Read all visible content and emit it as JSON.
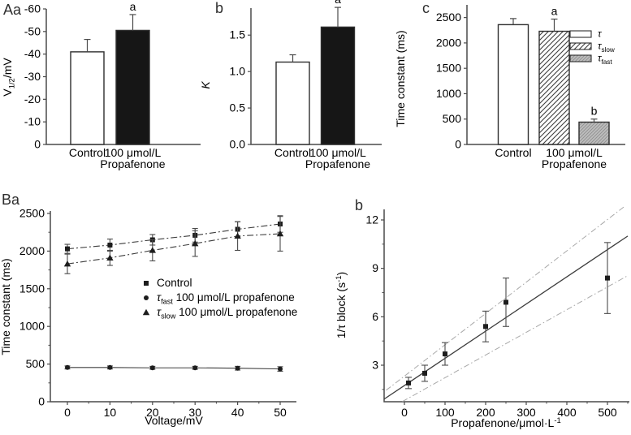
{
  "figure": {
    "background": "#ffffff",
    "text_color": "#3a3a3a",
    "axis_color": "#4a4a4a",
    "bar_black": "#161616",
    "bar_white": "#ffffff",
    "gray_fill": "#bdbdbd",
    "confidence_line_color": "#a8a8a8"
  },
  "chart_data": [
    {
      "id": "Aa",
      "panel_label": "Aa",
      "type": "bar",
      "ylabel_rich": [
        {
          "t": "V"
        },
        {
          "t": "1/2",
          "sub": true
        },
        {
          "t": "/mV"
        }
      ],
      "ylim": [
        0,
        -60
      ],
      "yticks": [
        {
          "v": 0,
          "label": "0"
        },
        {
          "v": 10,
          "label": "-10"
        },
        {
          "v": 20,
          "label": "-20"
        },
        {
          "v": 30,
          "label": "-30"
        },
        {
          "v": 40,
          "label": "-40"
        },
        {
          "v": 50,
          "label": "-50"
        },
        {
          "v": 60,
          "label": "-60"
        }
      ],
      "bars": [
        {
          "category_lines": [
            "Control"
          ],
          "value": -41,
          "error": 5.5,
          "fill": "white",
          "sig": null
        },
        {
          "category_lines": [
            "100 μmol/L",
            "Propafenone"
          ],
          "value": -50.5,
          "error": 7,
          "fill": "black",
          "sig": "a"
        }
      ]
    },
    {
      "id": "Ab",
      "panel_label": "b",
      "type": "bar",
      "ylabel_rich": [
        {
          "t": "K",
          "italic": true
        }
      ],
      "ylim": [
        0,
        1.87
      ],
      "yticks": [
        {
          "v": 0,
          "label": "0.0"
        },
        {
          "v": 0.5,
          "label": "0.5"
        },
        {
          "v": 1,
          "label": "1.0"
        },
        {
          "v": 1.5,
          "label": "1.5"
        }
      ],
      "bars": [
        {
          "category_lines": [
            "Control"
          ],
          "value": 1.13,
          "error": 0.1,
          "fill": "white",
          "sig": null
        },
        {
          "category_lines": [
            "100 μmol/L",
            "Propafenone"
          ],
          "value": 1.61,
          "error": 0.27,
          "fill": "black",
          "sig": "a"
        }
      ]
    },
    {
      "id": "Ac",
      "panel_label": "c",
      "type": "bar",
      "ylabel_rich": [
        {
          "t": "Time constant (ms)"
        }
      ],
      "ylim": [
        0,
        2750
      ],
      "yticks": [
        {
          "v": 0,
          "label": "0"
        },
        {
          "v": 500,
          "label": "500"
        },
        {
          "v": 1000,
          "label": "1000"
        },
        {
          "v": 1500,
          "label": "1500"
        },
        {
          "v": 2000,
          "label": "2000"
        },
        {
          "v": 2500,
          "label": "2500"
        }
      ],
      "bars": [
        {
          "category_lines": [
            "Control"
          ],
          "value": 2360,
          "error": 120,
          "fill": "white",
          "sig": null,
          "series": "tau"
        },
        {
          "category_lines": [
            "100 μmol/L",
            "Propafenone"
          ],
          "value": 2230,
          "error": 240,
          "fill": "hatch",
          "sig": "a",
          "series": "tau_slow"
        },
        {
          "category_lines": [],
          "value": 440,
          "error": 60,
          "fill": "gray-hatch",
          "sig": "b",
          "series": "tau_fast"
        }
      ],
      "legend": [
        {
          "fill": "white",
          "label_rich": [
            {
              "t": "τ",
              "italic": true
            }
          ]
        },
        {
          "fill": "hatch",
          "label_rich": [
            {
              "t": "τ",
              "italic": true
            },
            {
              "t": "slow",
              "sub": true
            }
          ]
        },
        {
          "fill": "gray-hatch",
          "label_rich": [
            {
              "t": "τ",
              "italic": true
            },
            {
              "t": "fast",
              "sub": true
            }
          ]
        }
      ]
    },
    {
      "id": "Ba",
      "panel_label": "Ba",
      "type": "line",
      "xlabel": "Voltage/mV",
      "ylabel_rich": [
        {
          "t": "Time constant (ms)"
        }
      ],
      "x": [
        0,
        10,
        20,
        30,
        40,
        50
      ],
      "xticks": [
        0,
        10,
        20,
        30,
        40,
        50
      ],
      "yticks": [
        0,
        500,
        1000,
        1500,
        2000,
        2500
      ],
      "series": [
        {
          "marker": "square",
          "dash": "dashdot",
          "label_rich": [
            {
              "t": "Control"
            }
          ],
          "values": [
            2030,
            2080,
            2150,
            2210,
            2290,
            2360
          ],
          "errors": [
            60,
            80,
            70,
            90,
            100,
            110
          ]
        },
        {
          "marker": "circle",
          "dash": "solid",
          "label_rich": [
            {
              "t": "τ",
              "italic": true
            },
            {
              "t": "fast",
              "sub": true
            },
            {
              "t": " 100 μmol/L propafenone"
            }
          ],
          "values": [
            455,
            455,
            450,
            450,
            445,
            435
          ],
          "errors": [
            20,
            20,
            20,
            20,
            25,
            30
          ]
        },
        {
          "marker": "triangle",
          "dash": "dashdot",
          "label_rich": [
            {
              "t": "τ",
              "italic": true
            },
            {
              "t": "slow",
              "sub": true
            },
            {
              "t": " 100 μmol/L propafenone"
            }
          ],
          "values": [
            1830,
            1910,
            2010,
            2100,
            2200,
            2230
          ],
          "errors": [
            130,
            100,
            140,
            170,
            190,
            230
          ]
        }
      ]
    },
    {
      "id": "Bb",
      "panel_label": "b",
      "type": "scatter",
      "xlabel_rich": [
        {
          "t": "Propafenone/μmol·L"
        },
        {
          "t": "-1",
          "sup": true
        }
      ],
      "ylabel_rich": [
        {
          "t": "1/τ block (s"
        },
        {
          "t": "-1",
          "sup": true
        },
        {
          "t": ")"
        }
      ],
      "xticks": [
        0,
        100,
        200,
        300,
        400,
        500
      ],
      "yticks": [
        3,
        6,
        9,
        12
      ],
      "points": [
        {
          "x": 10,
          "y": 1.9,
          "err": 0.35
        },
        {
          "x": 50,
          "y": 2.5,
          "err": 0.5
        },
        {
          "x": 100,
          "y": 3.7,
          "err": 0.7
        },
        {
          "x": 200,
          "y": 5.4,
          "err": 0.95
        },
        {
          "x": 250,
          "y": 6.9,
          "err": 1.5
        },
        {
          "x": 500,
          "y": 8.4,
          "err": 2.2
        }
      ],
      "fit_line": {
        "x": [
          -50,
          550
        ],
        "y": [
          0.9,
          11.0
        ]
      },
      "confidence_lines": [
        {
          "x": [
            -45,
            540
          ],
          "y": [
            1.45,
            12.8
          ]
        },
        {
          "x": [
            -5,
            550
          ],
          "y": [
            0.75,
            8.55
          ]
        }
      ]
    }
  ]
}
